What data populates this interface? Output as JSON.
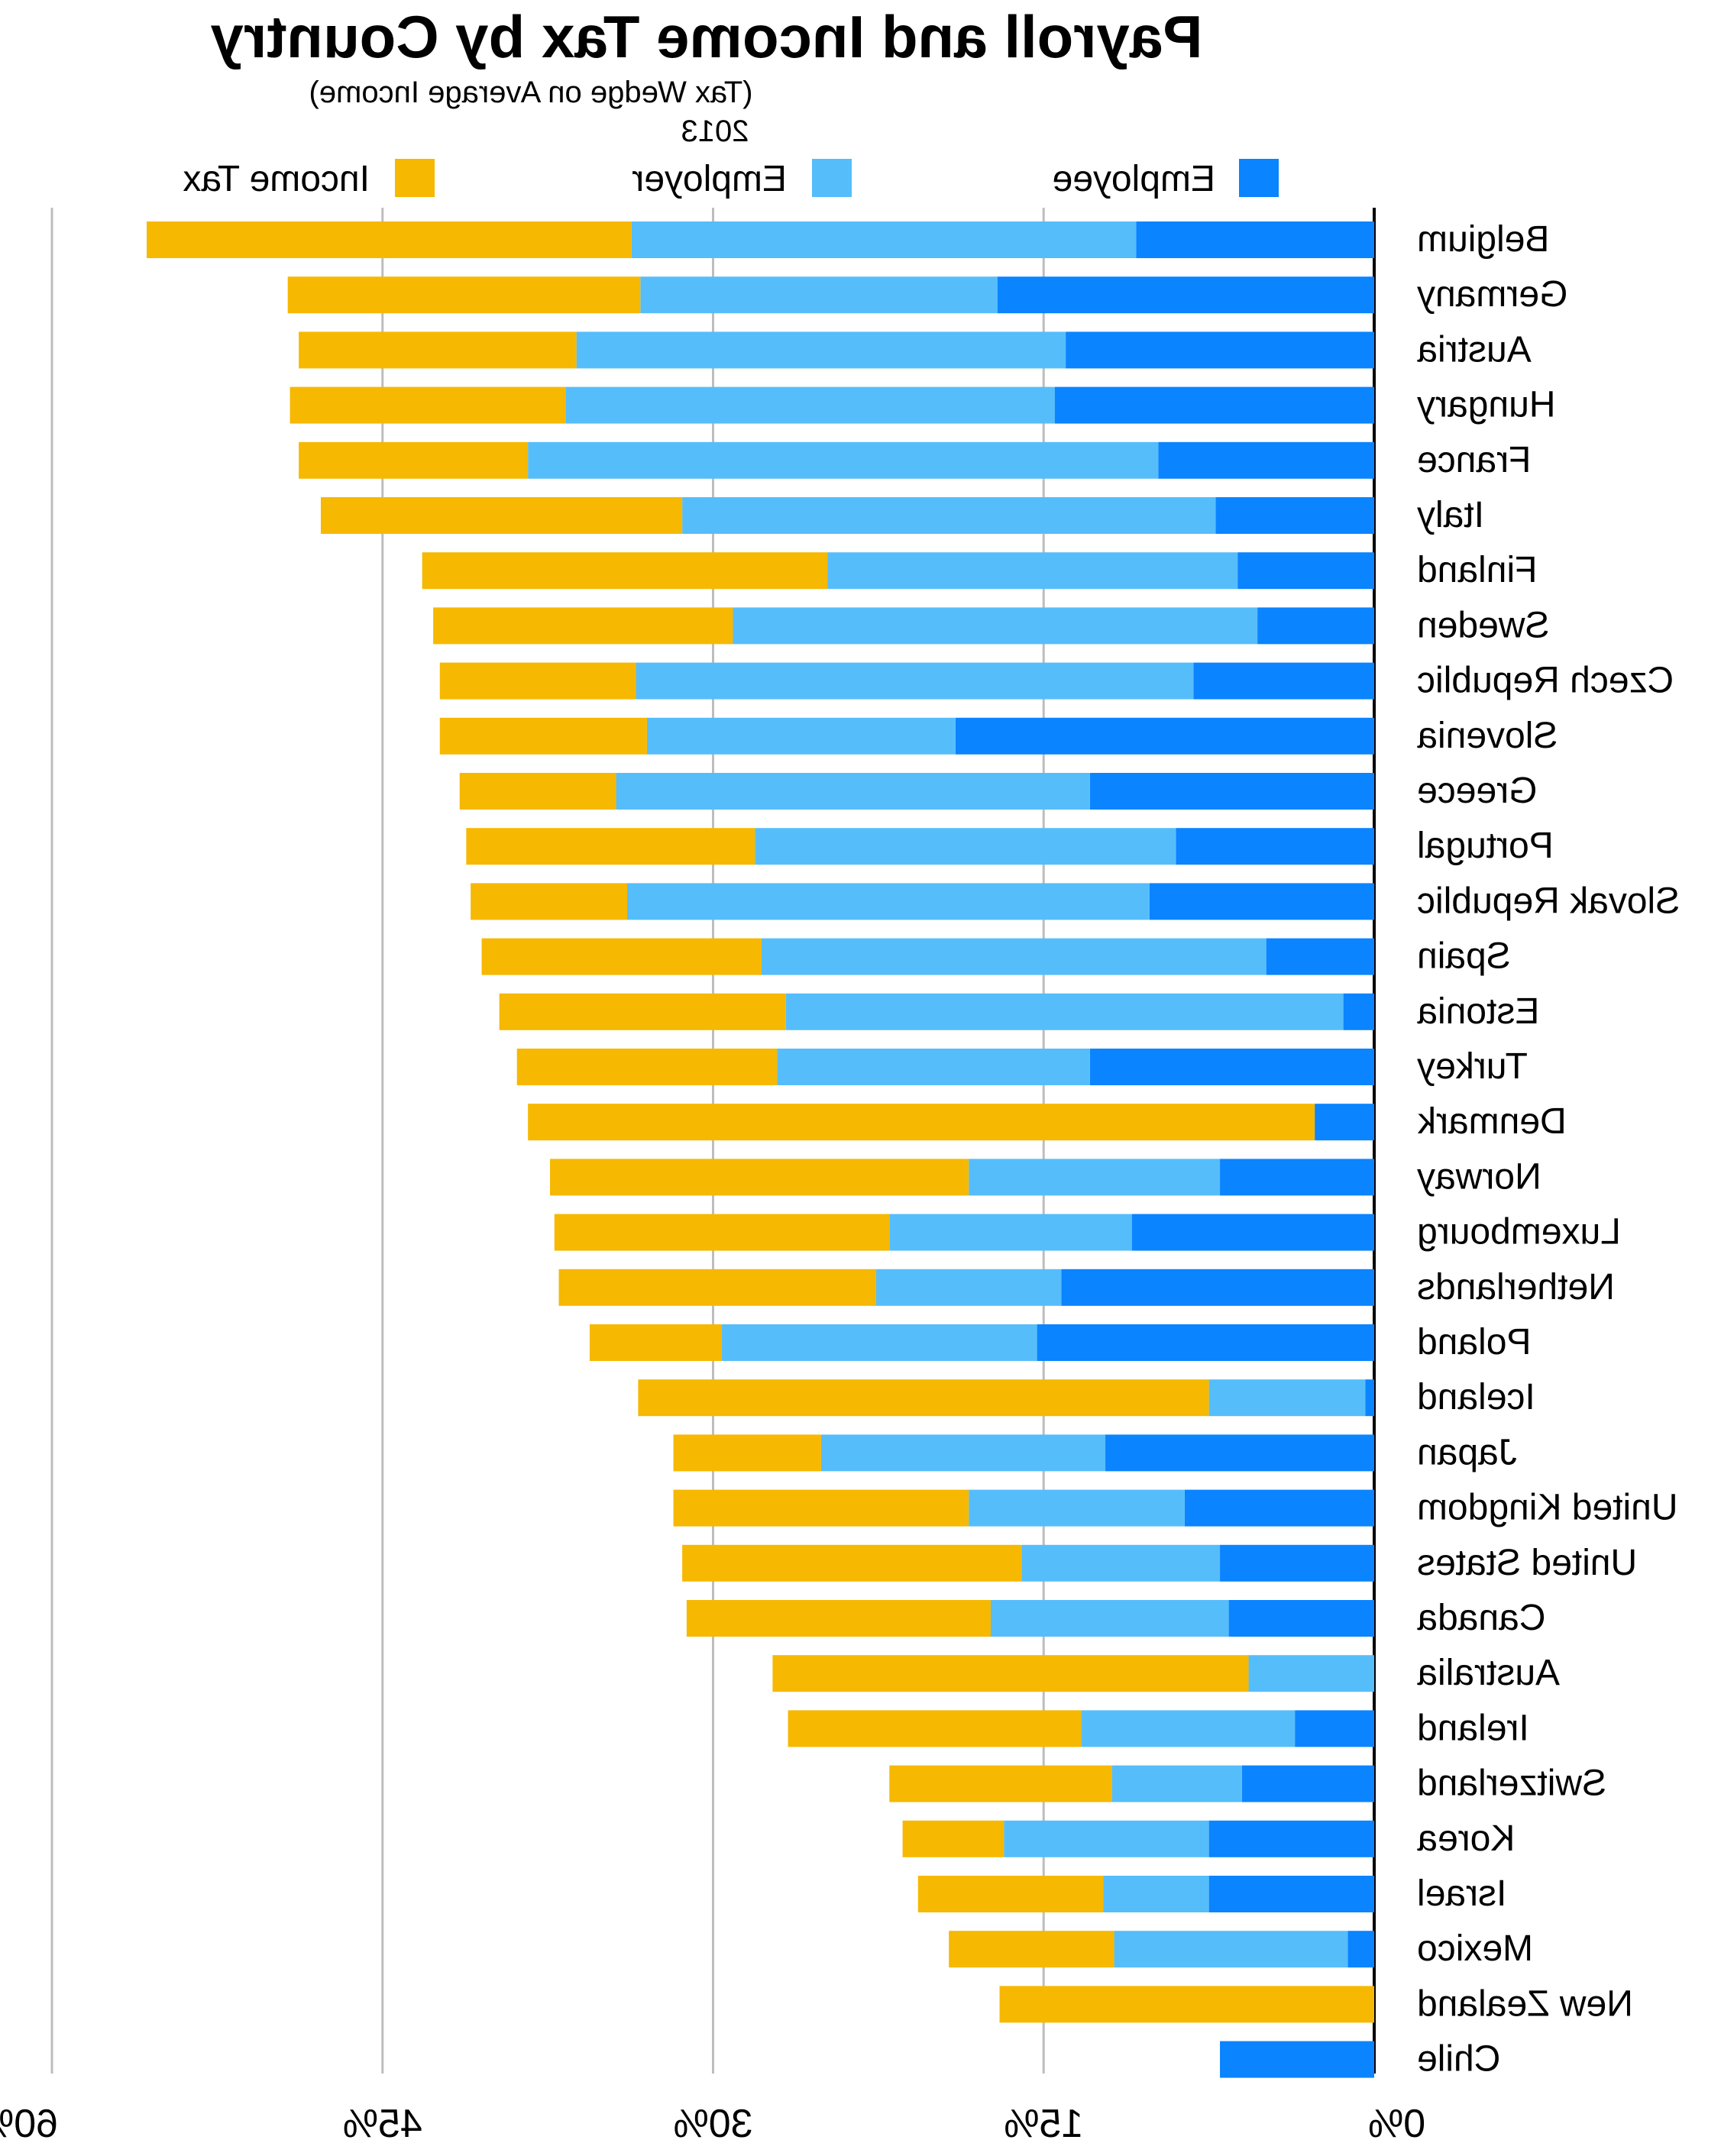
{
  "chart_data": {
    "type": "bar",
    "orientation": "horizontal-stacked",
    "mirrored": true,
    "title": "Payroll and Income Tax by Country",
    "subtitle": "(Tax Wedge on Average Income)",
    "year": "2013",
    "xlim": [
      0,
      60
    ],
    "x_ticks": [
      0,
      15,
      30,
      45,
      60
    ],
    "x_tick_labels": [
      "0%",
      "15%",
      "30%",
      "45%",
      "60%"
    ],
    "grid": true,
    "legend_position": "top",
    "categories": [
      "Belgium",
      "Germany",
      "Austria",
      "Hungary",
      "France",
      "Italy",
      "Finland",
      "Sweden",
      "Czech Republic",
      "Slovenia",
      "Greece",
      "Portugal",
      "Slovak Republic",
      "Spain",
      "Estonia",
      "Turkey",
      "Denmark",
      "Norway",
      "Luxembourg",
      "Netherlands",
      "Poland",
      "Iceland",
      "Japan",
      "United Kingdom",
      "United States",
      "Canada",
      "Australia",
      "Ireland",
      "Switzerland",
      "Korea",
      "Israel",
      "Mexico",
      "New Zealand",
      "Chile"
    ],
    "series": [
      {
        "name": "Employee",
        "color": "#0a84ff",
        "values": [
          10.8,
          17.1,
          14.0,
          14.5,
          9.8,
          7.2,
          6.2,
          5.3,
          8.2,
          19.0,
          12.9,
          9.0,
          10.2,
          4.9,
          1.4,
          12.9,
          2.7,
          7.0,
          11.0,
          14.2,
          15.3,
          0.4,
          12.2,
          8.6,
          7.0,
          6.6,
          0,
          3.6,
          6.0,
          7.5,
          7.5,
          1.2,
          0,
          7.0
        ]
      },
      {
        "name": "Employer",
        "color": "#56bdfb",
        "values": [
          22.9,
          16.2,
          22.2,
          22.2,
          28.6,
          24.2,
          18.6,
          23.8,
          25.3,
          14.0,
          21.5,
          19.1,
          23.7,
          22.9,
          25.3,
          14.2,
          0,
          11.4,
          11.0,
          8.4,
          14.3,
          7.1,
          12.9,
          9.8,
          9.0,
          10.8,
          5.7,
          9.7,
          5.9,
          9.3,
          4.8,
          10.6,
          0,
          0
        ]
      },
      {
        "name": "Income Tax",
        "color": "#f6b800",
        "values": [
          22.0,
          16.0,
          12.6,
          12.5,
          10.4,
          16.4,
          18.4,
          13.6,
          8.9,
          9.4,
          7.1,
          13.1,
          7.1,
          12.7,
          13.0,
          11.8,
          35.7,
          19.0,
          15.2,
          14.4,
          6.0,
          25.9,
          6.7,
          13.4,
          15.4,
          13.8,
          21.6,
          13.3,
          10.1,
          4.6,
          8.4,
          7.5,
          17.0,
          0
        ]
      }
    ]
  }
}
